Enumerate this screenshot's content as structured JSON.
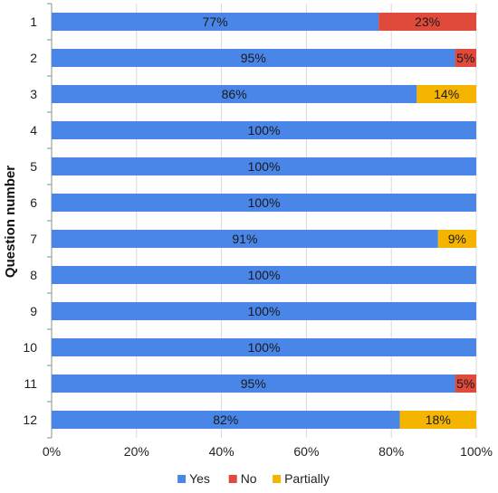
{
  "chart_data": {
    "type": "bar",
    "orientation": "horizontal",
    "stacked": true,
    "categories": [
      "1",
      "2",
      "3",
      "4",
      "5",
      "6",
      "7",
      "8",
      "9",
      "10",
      "11",
      "12"
    ],
    "series": [
      {
        "name": "Yes",
        "color": "#4a86e8",
        "values": [
          77,
          95,
          86,
          100,
          100,
          100,
          91,
          100,
          100,
          100,
          95,
          82
        ]
      },
      {
        "name": "No",
        "color": "#e04a3a",
        "values": [
          23,
          5,
          0,
          0,
          0,
          0,
          0,
          0,
          0,
          0,
          5,
          0
        ]
      },
      {
        "name": "Partially",
        "color": "#f4b400",
        "values": [
          0,
          0,
          14,
          0,
          0,
          0,
          9,
          0,
          0,
          0,
          0,
          18
        ]
      }
    ],
    "data_labels": [
      [
        "77%",
        "95%",
        "86%",
        "100%",
        "100%",
        "100%",
        "91%",
        "100%",
        "100%",
        "100%",
        "95%",
        "82%"
      ],
      [
        "23%",
        "5%",
        "",
        "",
        "",
        "",
        "",
        "",
        "",
        "",
        "5%",
        ""
      ],
      [
        "",
        "",
        "14%",
        "",
        "",
        "",
        "9%",
        "",
        "",
        "",
        "",
        "18%"
      ]
    ],
    "xticks": [
      "0%",
      "20%",
      "40%",
      "60%",
      "80%",
      "100%"
    ],
    "xlim": [
      0,
      100
    ],
    "ylabel": "Question number",
    "xlabel": "",
    "grid": true,
    "legend_position": "bottom"
  }
}
